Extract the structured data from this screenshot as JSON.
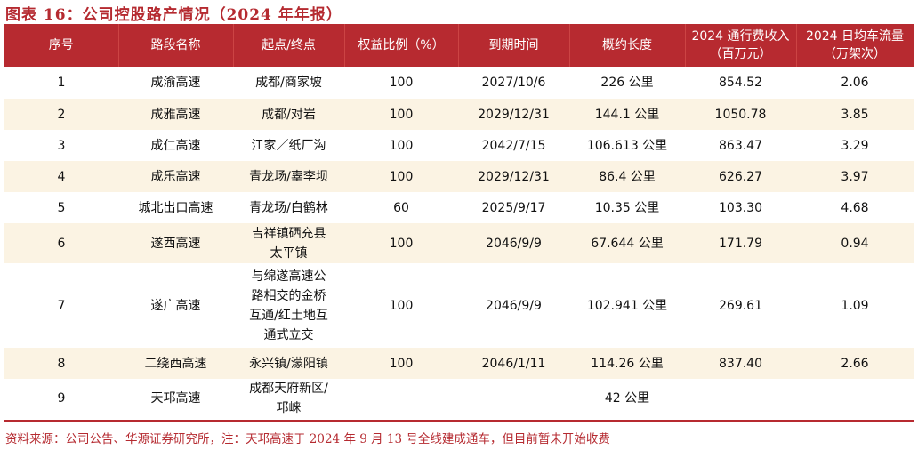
{
  "title": "图表 16：公司控股路产情况（2024 年年报）",
  "headers": [
    "序号",
    "路段名称",
    "起点/终点",
    "权益比例（%）",
    "到期时间",
    "概约长度",
    "2024 通行费收入（百万元）",
    "2024 日均车流量（万架次）"
  ],
  "rows": [
    [
      "1",
      "成渝高速",
      "成都/商家坡",
      "100",
      "2027/10/6",
      "226 公里",
      "854.52",
      "2.06"
    ],
    [
      "2",
      "成雅高速",
      "成都/对岩",
      "100",
      "2029/12/31",
      "144.1 公里",
      "1050.78",
      "3.85"
    ],
    [
      "3",
      "成仁高速",
      "江家／纸厂沟",
      "100",
      "2042/7/15",
      "106.613 公里",
      "863.47",
      "3.29"
    ],
    [
      "4",
      "成乐高速",
      "青龙场/辜李坝",
      "100",
      "2029/12/31",
      "86.4 公里",
      "626.27",
      "3.97"
    ],
    [
      "5",
      "城北出口高速",
      "青龙场/白鹤林",
      "60",
      "2025/9/17",
      "10.35 公里",
      "103.30",
      "4.68"
    ],
    [
      "6",
      "遂西高速",
      "吉祥镇硒充县太平镇",
      "100",
      "2046/9/9",
      "67.644 公里",
      "171.79",
      "0.94"
    ],
    [
      "7",
      "遂广高速",
      "与绵遂高速公路相交的金桥互通/红土地互通式立交",
      "100",
      "2046/9/9",
      "102.941 公里",
      "269.61",
      "1.09"
    ],
    [
      "8",
      "二绕西高速",
      "永兴镇/濛阳镇",
      "100",
      "2046/1/11",
      "114.26 公里",
      "837.40",
      "2.66"
    ],
    [
      "9",
      "天邛高速",
      "成都天府新区/邛崃",
      "",
      "",
      "42 公里",
      "",
      ""
    ]
  ],
  "footnote": "资料来源：公司公告、华源证券研究所，注：天邛高速于 2024 年 9 月 13 号全线建成通车，但目前暂未开始收费",
  "colors": {
    "accent": "#b72a30",
    "stripe": "#fbf3e3"
  }
}
